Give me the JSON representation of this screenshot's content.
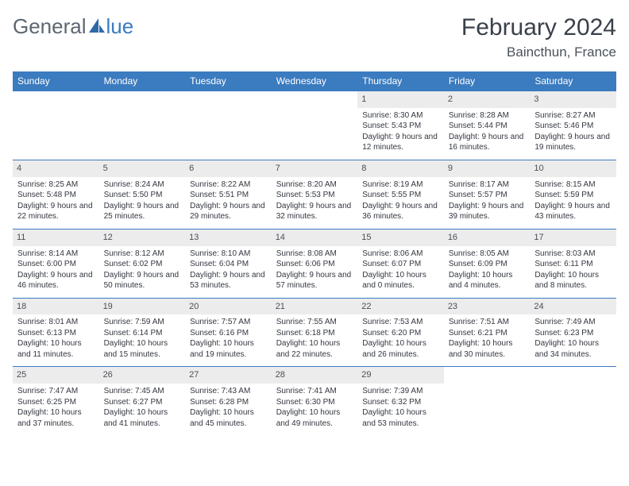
{
  "logo": {
    "part1": "General",
    "part2": "lue"
  },
  "month_title": "February 2024",
  "location": "Baincthun, France",
  "colors": {
    "header_bg": "#3b7bbf",
    "header_text": "#ffffff",
    "row_border": "#3b7bbf",
    "daynum_bg": "#ececec",
    "body_text": "#333740",
    "title_text": "#3a4049",
    "logo_grey": "#5d6770",
    "logo_blue": "#3b7bbf"
  },
  "day_headers": [
    "Sunday",
    "Monday",
    "Tuesday",
    "Wednesday",
    "Thursday",
    "Friday",
    "Saturday"
  ],
  "weeks": [
    [
      {
        "empty": true
      },
      {
        "empty": true
      },
      {
        "empty": true
      },
      {
        "empty": true
      },
      {
        "num": "1",
        "sunrise": "Sunrise: 8:30 AM",
        "sunset": "Sunset: 5:43 PM",
        "daylight": "Daylight: 9 hours and 12 minutes."
      },
      {
        "num": "2",
        "sunrise": "Sunrise: 8:28 AM",
        "sunset": "Sunset: 5:44 PM",
        "daylight": "Daylight: 9 hours and 16 minutes."
      },
      {
        "num": "3",
        "sunrise": "Sunrise: 8:27 AM",
        "sunset": "Sunset: 5:46 PM",
        "daylight": "Daylight: 9 hours and 19 minutes."
      }
    ],
    [
      {
        "num": "4",
        "sunrise": "Sunrise: 8:25 AM",
        "sunset": "Sunset: 5:48 PM",
        "daylight": "Daylight: 9 hours and 22 minutes."
      },
      {
        "num": "5",
        "sunrise": "Sunrise: 8:24 AM",
        "sunset": "Sunset: 5:50 PM",
        "daylight": "Daylight: 9 hours and 25 minutes."
      },
      {
        "num": "6",
        "sunrise": "Sunrise: 8:22 AM",
        "sunset": "Sunset: 5:51 PM",
        "daylight": "Daylight: 9 hours and 29 minutes."
      },
      {
        "num": "7",
        "sunrise": "Sunrise: 8:20 AM",
        "sunset": "Sunset: 5:53 PM",
        "daylight": "Daylight: 9 hours and 32 minutes."
      },
      {
        "num": "8",
        "sunrise": "Sunrise: 8:19 AM",
        "sunset": "Sunset: 5:55 PM",
        "daylight": "Daylight: 9 hours and 36 minutes."
      },
      {
        "num": "9",
        "sunrise": "Sunrise: 8:17 AM",
        "sunset": "Sunset: 5:57 PM",
        "daylight": "Daylight: 9 hours and 39 minutes."
      },
      {
        "num": "10",
        "sunrise": "Sunrise: 8:15 AM",
        "sunset": "Sunset: 5:59 PM",
        "daylight": "Daylight: 9 hours and 43 minutes."
      }
    ],
    [
      {
        "num": "11",
        "sunrise": "Sunrise: 8:14 AM",
        "sunset": "Sunset: 6:00 PM",
        "daylight": "Daylight: 9 hours and 46 minutes."
      },
      {
        "num": "12",
        "sunrise": "Sunrise: 8:12 AM",
        "sunset": "Sunset: 6:02 PM",
        "daylight": "Daylight: 9 hours and 50 minutes."
      },
      {
        "num": "13",
        "sunrise": "Sunrise: 8:10 AM",
        "sunset": "Sunset: 6:04 PM",
        "daylight": "Daylight: 9 hours and 53 minutes."
      },
      {
        "num": "14",
        "sunrise": "Sunrise: 8:08 AM",
        "sunset": "Sunset: 6:06 PM",
        "daylight": "Daylight: 9 hours and 57 minutes."
      },
      {
        "num": "15",
        "sunrise": "Sunrise: 8:06 AM",
        "sunset": "Sunset: 6:07 PM",
        "daylight": "Daylight: 10 hours and 0 minutes."
      },
      {
        "num": "16",
        "sunrise": "Sunrise: 8:05 AM",
        "sunset": "Sunset: 6:09 PM",
        "daylight": "Daylight: 10 hours and 4 minutes."
      },
      {
        "num": "17",
        "sunrise": "Sunrise: 8:03 AM",
        "sunset": "Sunset: 6:11 PM",
        "daylight": "Daylight: 10 hours and 8 minutes."
      }
    ],
    [
      {
        "num": "18",
        "sunrise": "Sunrise: 8:01 AM",
        "sunset": "Sunset: 6:13 PM",
        "daylight": "Daylight: 10 hours and 11 minutes."
      },
      {
        "num": "19",
        "sunrise": "Sunrise: 7:59 AM",
        "sunset": "Sunset: 6:14 PM",
        "daylight": "Daylight: 10 hours and 15 minutes."
      },
      {
        "num": "20",
        "sunrise": "Sunrise: 7:57 AM",
        "sunset": "Sunset: 6:16 PM",
        "daylight": "Daylight: 10 hours and 19 minutes."
      },
      {
        "num": "21",
        "sunrise": "Sunrise: 7:55 AM",
        "sunset": "Sunset: 6:18 PM",
        "daylight": "Daylight: 10 hours and 22 minutes."
      },
      {
        "num": "22",
        "sunrise": "Sunrise: 7:53 AM",
        "sunset": "Sunset: 6:20 PM",
        "daylight": "Daylight: 10 hours and 26 minutes."
      },
      {
        "num": "23",
        "sunrise": "Sunrise: 7:51 AM",
        "sunset": "Sunset: 6:21 PM",
        "daylight": "Daylight: 10 hours and 30 minutes."
      },
      {
        "num": "24",
        "sunrise": "Sunrise: 7:49 AM",
        "sunset": "Sunset: 6:23 PM",
        "daylight": "Daylight: 10 hours and 34 minutes."
      }
    ],
    [
      {
        "num": "25",
        "sunrise": "Sunrise: 7:47 AM",
        "sunset": "Sunset: 6:25 PM",
        "daylight": "Daylight: 10 hours and 37 minutes."
      },
      {
        "num": "26",
        "sunrise": "Sunrise: 7:45 AM",
        "sunset": "Sunset: 6:27 PM",
        "daylight": "Daylight: 10 hours and 41 minutes."
      },
      {
        "num": "27",
        "sunrise": "Sunrise: 7:43 AM",
        "sunset": "Sunset: 6:28 PM",
        "daylight": "Daylight: 10 hours and 45 minutes."
      },
      {
        "num": "28",
        "sunrise": "Sunrise: 7:41 AM",
        "sunset": "Sunset: 6:30 PM",
        "daylight": "Daylight: 10 hours and 49 minutes."
      },
      {
        "num": "29",
        "sunrise": "Sunrise: 7:39 AM",
        "sunset": "Sunset: 6:32 PM",
        "daylight": "Daylight: 10 hours and 53 minutes."
      },
      {
        "empty": true
      },
      {
        "empty": true
      }
    ]
  ]
}
